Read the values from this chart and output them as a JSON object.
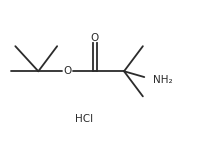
{
  "background_color": "#ffffff",
  "line_color": "#2b2b2b",
  "text_color": "#2b2b2b",
  "line_width": 1.3,
  "font_size_atoms": 7.5,
  "font_size_hcl": 7.5,
  "hcl_label": "HCl",
  "o_label": "O",
  "nh2_label": "NH₂",
  "o_ether_label": "O",
  "figsize": [
    2.0,
    1.53
  ],
  "dpi": 100
}
